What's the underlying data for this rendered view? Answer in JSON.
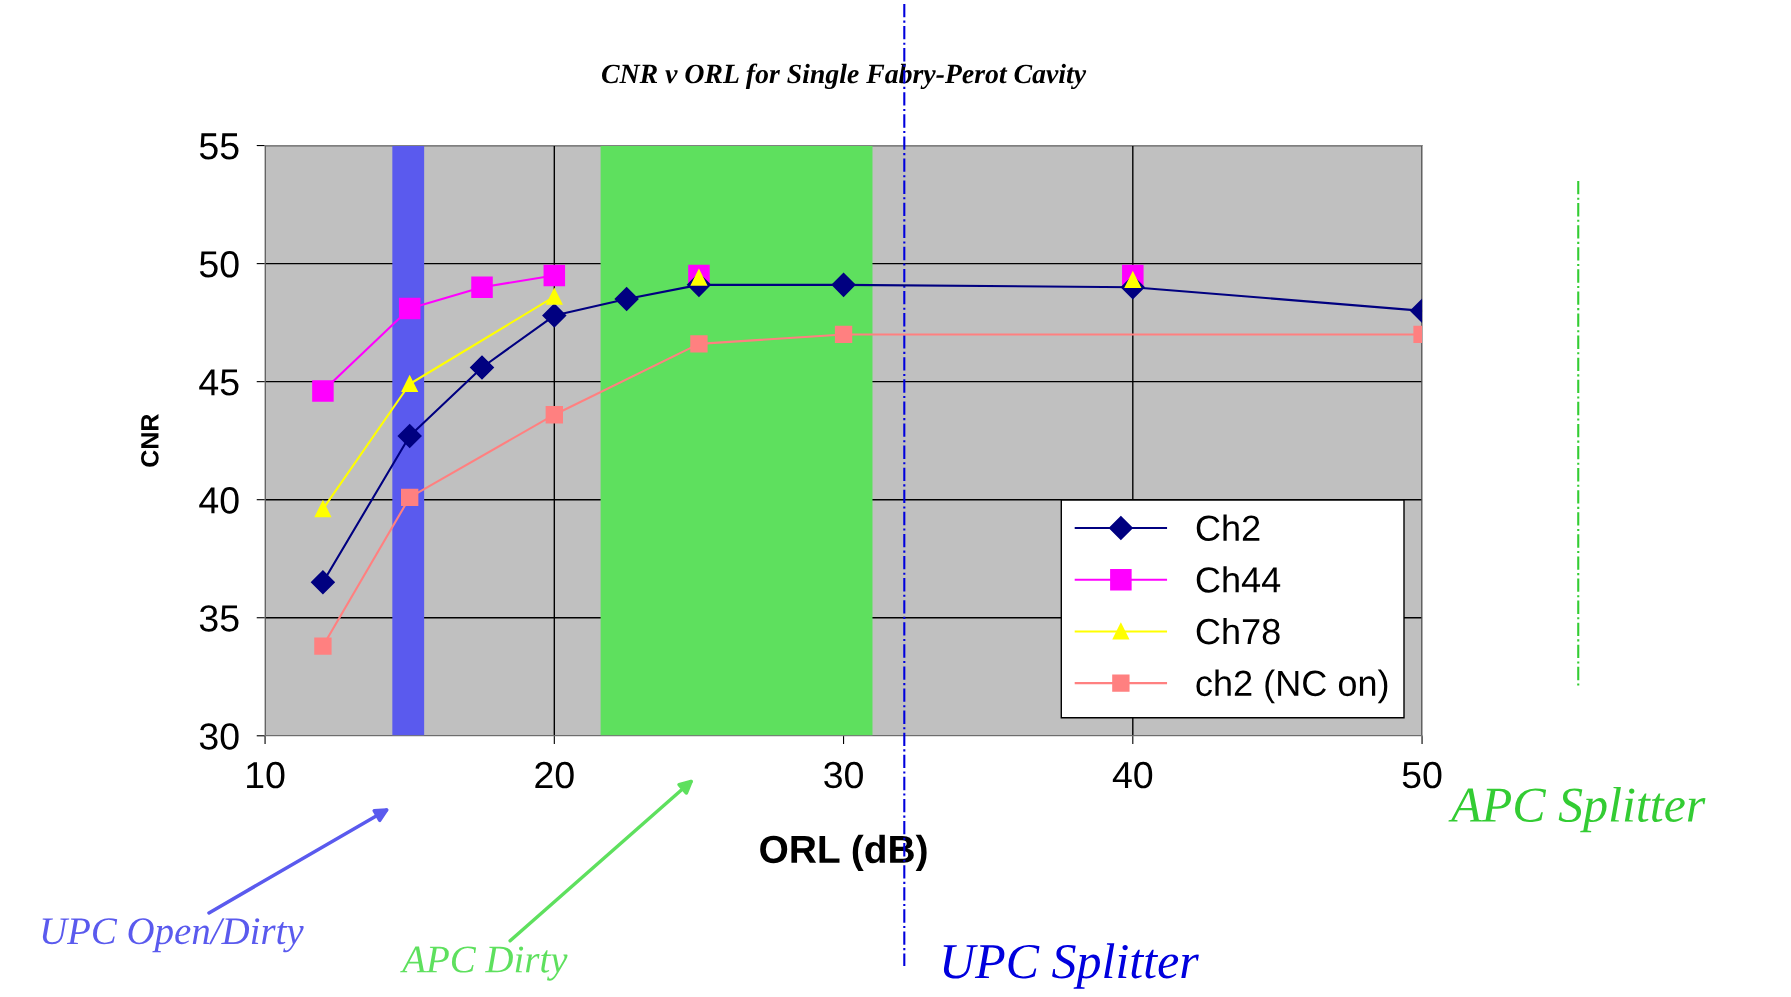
{
  "chart_data": {
    "type": "line",
    "title": "CNR v ORL for Single Fabry-Perot Cavity",
    "xlabel": "ORL (dB)",
    "ylabel": "CNR",
    "xlim": [
      10,
      50
    ],
    "xticks": [
      10,
      20,
      30,
      40,
      50
    ],
    "ylim": [
      30,
      55
    ],
    "yticks": [
      30,
      35,
      40,
      45,
      50,
      55
    ],
    "grid": true,
    "legend": "lower right",
    "line_style": "solid",
    "series": [
      {
        "name": "Ch2",
        "color": "#000080",
        "marker": "diamond",
        "x": [
          12,
          15,
          17.5,
          20,
          22.5,
          25,
          30,
          40,
          50
        ],
        "values": [
          36.5,
          42.7,
          45.6,
          47.8,
          48.5,
          49.1,
          49.1,
          49.0,
          48.0
        ]
      },
      {
        "name": "Ch44",
        "color": "#ff00ff",
        "marker": "square",
        "x": [
          12,
          15,
          17.5,
          20,
          22.5,
          25,
          30,
          40
        ],
        "values": [
          44.6,
          48.1,
          49.0,
          49.5,
          null,
          49.5,
          null,
          49.5
        ]
      },
      {
        "name": "Ch78",
        "color": "#ffff00",
        "marker": "triangle",
        "x": [
          12,
          15,
          20,
          22.5,
          25,
          30,
          40
        ],
        "values": [
          39.6,
          44.9,
          48.6,
          null,
          49.4,
          null,
          49.3
        ]
      },
      {
        "name": "ch2 (NC on)",
        "color": "#ff8080",
        "marker": "square",
        "x": [
          12,
          15,
          20,
          25,
          30,
          50
        ],
        "values": [
          33.8,
          40.1,
          43.6,
          46.6,
          47.0,
          47.0
        ]
      }
    ],
    "bands": [
      {
        "axis": "x",
        "from": 14.4,
        "to": 15.5,
        "label": "UPC Open/Dirty",
        "color": "#5a5aee"
      },
      {
        "axis": "x",
        "from": 21.6,
        "to": 31.0,
        "label": "APC Dirty",
        "color": "#5ee05e"
      }
    ],
    "ref_lines": [
      {
        "axis": "x",
        "value": 32.1,
        "label": "UPC Splitter",
        "color": "#0000dd",
        "line_style": "dashdot"
      },
      {
        "axis": "x",
        "value": 55.4,
        "label": "APC Splitter",
        "color": "#33cc33",
        "line_style": "dashdot"
      }
    ]
  }
}
